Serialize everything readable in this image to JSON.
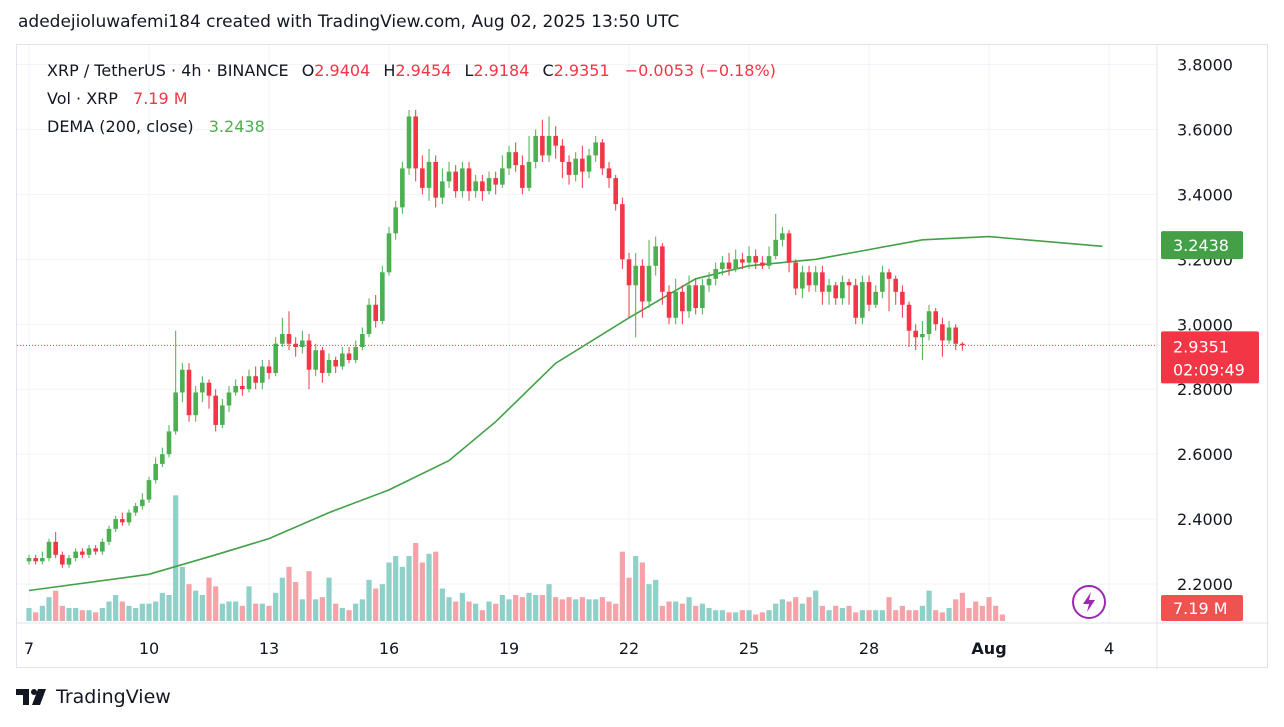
{
  "header": {
    "text": "adedejioluwafemi184 created with TradingView.com, Aug 02, 2025 13:50 UTC"
  },
  "legend": {
    "symbol": "XRP / TetherUS · 4h · BINANCE",
    "open_label": "O",
    "open": "2.9404",
    "high_label": "H",
    "high": "2.9454",
    "low_label": "L",
    "low": "2.9184",
    "close_label": "C",
    "close": "2.9351",
    "change": "−0.0053 (−0.18%)",
    "vol_label": "Vol · XRP",
    "vol_value": "7.19 M",
    "dema_label": "DEMA (200, close)",
    "dema_value": "3.2438"
  },
  "footer": {
    "brand": "TradingView"
  },
  "icons": {
    "logo": "tradingview-logo-icon",
    "bolt": "lightning-bolt-icon"
  },
  "colors": {
    "up": "#26a69a",
    "down": "#ef5350",
    "up_candle": "#4caf50",
    "down_candle": "#f23645",
    "dema": "#43a047",
    "vol_up": "#8fd0c8",
    "vol_down": "#f4a3a9"
  },
  "chart_data": {
    "type": "candlestick",
    "ylim": [
      2.08,
      3.86
    ],
    "y_ticks": [
      "3.8000",
      "3.6000",
      "3.4000",
      "3.2000",
      "3.0000",
      "2.8000",
      "2.6000",
      "2.4000",
      "2.2000"
    ],
    "y_tick_values": [
      3.8,
      3.6,
      3.4,
      3.2,
      3.0,
      2.8,
      2.6,
      2.4,
      2.2
    ],
    "x_ticks": [
      "7",
      "10",
      "13",
      "16",
      "19",
      "22",
      "25",
      "28",
      "Aug",
      "4"
    ],
    "x_tick_bars": [
      0,
      18,
      36,
      54,
      72,
      90,
      108,
      126,
      144,
      162
    ],
    "last_price": 2.9351,
    "last_price_label": "2.9351",
    "countdown": "02:09:49",
    "dema_badge": "3.2438",
    "vol_badge": "7.19 M",
    "series_dema": [
      [
        0,
        2.18
      ],
      [
        18,
        2.23
      ],
      [
        28,
        2.29
      ],
      [
        36,
        2.34
      ],
      [
        45,
        2.42
      ],
      [
        54,
        2.49
      ],
      [
        63,
        2.58
      ],
      [
        70,
        2.7
      ],
      [
        79,
        2.88
      ],
      [
        90,
        3.02
      ],
      [
        100,
        3.14
      ],
      [
        108,
        3.18
      ],
      [
        118,
        3.2
      ],
      [
        126,
        3.23
      ],
      [
        134,
        3.26
      ],
      [
        144,
        3.27
      ],
      [
        161,
        3.24
      ]
    ],
    "candles": [
      [
        2.27,
        2.28,
        2.29,
        2.26
      ],
      [
        2.28,
        2.27,
        2.29,
        2.26
      ],
      [
        2.27,
        2.28,
        2.3,
        2.26
      ],
      [
        2.28,
        2.33,
        2.34,
        2.27
      ],
      [
        2.33,
        2.29,
        2.36,
        2.28
      ],
      [
        2.29,
        2.26,
        2.3,
        2.25
      ],
      [
        2.26,
        2.28,
        2.29,
        2.25
      ],
      [
        2.28,
        2.3,
        2.31,
        2.27
      ],
      [
        2.3,
        2.29,
        2.31,
        2.28
      ],
      [
        2.29,
        2.31,
        2.32,
        2.28
      ],
      [
        2.31,
        2.3,
        2.32,
        2.29
      ],
      [
        2.3,
        2.33,
        2.34,
        2.29
      ],
      [
        2.33,
        2.37,
        2.38,
        2.32
      ],
      [
        2.37,
        2.4,
        2.41,
        2.36
      ],
      [
        2.4,
        2.39,
        2.42,
        2.38
      ],
      [
        2.39,
        2.42,
        2.43,
        2.38
      ],
      [
        2.42,
        2.44,
        2.45,
        2.41
      ],
      [
        2.44,
        2.46,
        2.48,
        2.43
      ],
      [
        2.46,
        2.52,
        2.53,
        2.45
      ],
      [
        2.52,
        2.57,
        2.59,
        2.51
      ],
      [
        2.57,
        2.6,
        2.62,
        2.56
      ],
      [
        2.6,
        2.67,
        2.69,
        2.59
      ],
      [
        2.67,
        2.79,
        2.98,
        2.66
      ],
      [
        2.79,
        2.86,
        2.88,
        2.76
      ],
      [
        2.86,
        2.72,
        2.88,
        2.7
      ],
      [
        2.72,
        2.79,
        2.81,
        2.7
      ],
      [
        2.79,
        2.82,
        2.84,
        2.76
      ],
      [
        2.82,
        2.78,
        2.83,
        2.74
      ],
      [
        2.78,
        2.69,
        2.8,
        2.67
      ],
      [
        2.69,
        2.75,
        2.77,
        2.68
      ],
      [
        2.75,
        2.79,
        2.81,
        2.73
      ],
      [
        2.79,
        2.81,
        2.83,
        2.78
      ],
      [
        2.81,
        2.8,
        2.84,
        2.78
      ],
      [
        2.8,
        2.84,
        2.86,
        2.79
      ],
      [
        2.84,
        2.82,
        2.87,
        2.8
      ],
      [
        2.82,
        2.87,
        2.89,
        2.8
      ],
      [
        2.87,
        2.85,
        2.89,
        2.83
      ],
      [
        2.85,
        2.94,
        2.96,
        2.84
      ],
      [
        2.94,
        2.97,
        3.02,
        2.93
      ],
      [
        2.97,
        2.94,
        3.04,
        2.92
      ],
      [
        2.94,
        2.93,
        2.96,
        2.9
      ],
      [
        2.93,
        2.95,
        2.98,
        2.91
      ],
      [
        2.95,
        2.86,
        2.97,
        2.8
      ],
      [
        2.86,
        2.92,
        2.94,
        2.84
      ],
      [
        2.92,
        2.85,
        2.93,
        2.82
      ],
      [
        2.85,
        2.89,
        2.91,
        2.84
      ],
      [
        2.89,
        2.87,
        2.9,
        2.85
      ],
      [
        2.87,
        2.91,
        2.93,
        2.86
      ],
      [
        2.91,
        2.89,
        2.93,
        2.88
      ],
      [
        2.89,
        2.93,
        2.95,
        2.88
      ],
      [
        2.93,
        2.97,
        2.99,
        2.92
      ],
      [
        2.97,
        3.06,
        3.08,
        2.96
      ],
      [
        3.06,
        3.01,
        3.09,
        2.99
      ],
      [
        3.01,
        3.16,
        3.18,
        3.0
      ],
      [
        3.16,
        3.28,
        3.3,
        3.15
      ],
      [
        3.28,
        3.36,
        3.38,
        3.26
      ],
      [
        3.36,
        3.48,
        3.5,
        3.34
      ],
      [
        3.48,
        3.64,
        3.66,
        3.46
      ],
      [
        3.64,
        3.48,
        3.66,
        3.44
      ],
      [
        3.48,
        3.42,
        3.52,
        3.4
      ],
      [
        3.42,
        3.5,
        3.54,
        3.38
      ],
      [
        3.5,
        3.39,
        3.52,
        3.36
      ],
      [
        3.39,
        3.44,
        3.48,
        3.37
      ],
      [
        3.44,
        3.47,
        3.5,
        3.42
      ],
      [
        3.47,
        3.41,
        3.49,
        3.39
      ],
      [
        3.41,
        3.48,
        3.5,
        3.39
      ],
      [
        3.48,
        3.41,
        3.5,
        3.38
      ],
      [
        3.41,
        3.44,
        3.46,
        3.39
      ],
      [
        3.44,
        3.41,
        3.46,
        3.38
      ],
      [
        3.41,
        3.45,
        3.47,
        3.4
      ],
      [
        3.45,
        3.43,
        3.47,
        3.4
      ],
      [
        3.43,
        3.48,
        3.52,
        3.42
      ],
      [
        3.48,
        3.53,
        3.55,
        3.46
      ],
      [
        3.53,
        3.49,
        3.56,
        3.47
      ],
      [
        3.49,
        3.42,
        3.52,
        3.4
      ],
      [
        3.42,
        3.5,
        3.58,
        3.41
      ],
      [
        3.5,
        3.58,
        3.6,
        3.48
      ],
      [
        3.58,
        3.52,
        3.63,
        3.5
      ],
      [
        3.52,
        3.58,
        3.64,
        3.5
      ],
      [
        3.58,
        3.55,
        3.61,
        3.51
      ],
      [
        3.55,
        3.5,
        3.57,
        3.45
      ],
      [
        3.5,
        3.46,
        3.52,
        3.43
      ],
      [
        3.46,
        3.51,
        3.53,
        3.44
      ],
      [
        3.51,
        3.47,
        3.55,
        3.42
      ],
      [
        3.47,
        3.52,
        3.54,
        3.45
      ],
      [
        3.52,
        3.56,
        3.58,
        3.5
      ],
      [
        3.56,
        3.48,
        3.57,
        3.46
      ],
      [
        3.48,
        3.45,
        3.5,
        3.42
      ],
      [
        3.45,
        3.37,
        3.46,
        3.35
      ],
      [
        3.37,
        3.2,
        3.39,
        3.17
      ],
      [
        3.2,
        3.12,
        3.22,
        3.02
      ],
      [
        3.12,
        3.18,
        3.22,
        2.96
      ],
      [
        3.18,
        3.07,
        3.2,
        3.02
      ],
      [
        3.07,
        3.18,
        3.26,
        3.05
      ],
      [
        3.18,
        3.24,
        3.27,
        3.15
      ],
      [
        3.24,
        3.1,
        3.25,
        3.06
      ],
      [
        3.1,
        3.02,
        3.12,
        3.0
      ],
      [
        3.02,
        3.1,
        3.14,
        3.0
      ],
      [
        3.1,
        3.04,
        3.12,
        3.0
      ],
      [
        3.04,
        3.12,
        3.15,
        3.02
      ],
      [
        3.12,
        3.05,
        3.14,
        3.03
      ],
      [
        3.05,
        3.12,
        3.14,
        3.03
      ],
      [
        3.12,
        3.14,
        3.16,
        3.1
      ],
      [
        3.14,
        3.17,
        3.19,
        3.12
      ],
      [
        3.17,
        3.19,
        3.21,
        3.15
      ],
      [
        3.19,
        3.17,
        3.22,
        3.15
      ],
      [
        3.17,
        3.2,
        3.23,
        3.16
      ],
      [
        3.2,
        3.19,
        3.22,
        3.17
      ],
      [
        3.19,
        3.21,
        3.24,
        3.17
      ],
      [
        3.21,
        3.19,
        3.23,
        3.17
      ],
      [
        3.19,
        3.18,
        3.21,
        3.17
      ],
      [
        3.18,
        3.21,
        3.24,
        3.17
      ],
      [
        3.21,
        3.26,
        3.34,
        3.2
      ],
      [
        3.26,
        3.28,
        3.3,
        3.24
      ],
      [
        3.28,
        3.19,
        3.29,
        3.16
      ],
      [
        3.19,
        3.11,
        3.2,
        3.09
      ],
      [
        3.11,
        3.16,
        3.18,
        3.08
      ],
      [
        3.16,
        3.12,
        3.18,
        3.1
      ],
      [
        3.12,
        3.16,
        3.18,
        3.1
      ],
      [
        3.16,
        3.1,
        3.18,
        3.06
      ],
      [
        3.1,
        3.12,
        3.14,
        3.06
      ],
      [
        3.12,
        3.08,
        3.13,
        3.06
      ],
      [
        3.08,
        3.13,
        3.15,
        3.06
      ],
      [
        3.13,
        3.12,
        3.14,
        3.06
      ],
      [
        3.12,
        3.02,
        3.14,
        3.0
      ],
      [
        3.02,
        3.13,
        3.15,
        3.0
      ],
      [
        3.13,
        3.06,
        3.15,
        3.04
      ],
      [
        3.06,
        3.1,
        3.12,
        3.05
      ],
      [
        3.1,
        3.16,
        3.18,
        3.08
      ],
      [
        3.16,
        3.14,
        3.17,
        3.04
      ],
      [
        3.14,
        3.1,
        3.15,
        3.06
      ],
      [
        3.1,
        3.06,
        3.12,
        3.02
      ],
      [
        3.06,
        2.98,
        3.07,
        2.93
      ],
      [
        2.98,
        2.96,
        3.0,
        2.92
      ],
      [
        2.96,
        2.97,
        3.01,
        2.89
      ],
      [
        2.97,
        3.04,
        3.06,
        2.95
      ],
      [
        3.04,
        3.0,
        3.05,
        2.98
      ],
      [
        3.0,
        2.95,
        3.02,
        2.9
      ],
      [
        2.95,
        2.99,
        3.01,
        2.94
      ],
      [
        2.99,
        2.94,
        3.0,
        2.92
      ],
      [
        2.94,
        2.9351,
        2.9454,
        2.9184
      ]
    ],
    "volume": [
      0.06,
      0.04,
      0.07,
      0.11,
      0.14,
      0.07,
      0.06,
      0.06,
      0.05,
      0.05,
      0.04,
      0.06,
      0.09,
      0.12,
      0.09,
      0.07,
      0.06,
      0.08,
      0.08,
      0.09,
      0.13,
      0.12,
      0.58,
      0.25,
      0.17,
      0.14,
      0.12,
      0.2,
      0.16,
      0.08,
      0.09,
      0.09,
      0.07,
      0.16,
      0.08,
      0.08,
      0.07,
      0.13,
      0.2,
      0.25,
      0.18,
      0.1,
      0.23,
      0.1,
      0.11,
      0.2,
      0.08,
      0.06,
      0.05,
      0.08,
      0.1,
      0.19,
      0.15,
      0.17,
      0.27,
      0.3,
      0.25,
      0.3,
      0.36,
      0.27,
      0.31,
      0.32,
      0.15,
      0.11,
      0.09,
      0.13,
      0.09,
      0.08,
      0.05,
      0.09,
      0.08,
      0.12,
      0.1,
      0.12,
      0.11,
      0.13,
      0.12,
      0.12,
      0.17,
      0.11,
      0.1,
      0.11,
      0.1,
      0.11,
      0.1,
      0.1,
      0.11,
      0.09,
      0.08,
      0.32,
      0.2,
      0.3,
      0.27,
      0.17,
      0.19,
      0.07,
      0.09,
      0.09,
      0.08,
      0.11,
      0.07,
      0.08,
      0.06,
      0.05,
      0.05,
      0.04,
      0.04,
      0.05,
      0.05,
      0.03,
      0.04,
      0.05,
      0.08,
      0.1,
      0.09,
      0.11,
      0.08,
      0.11,
      0.14,
      0.07,
      0.05,
      0.07,
      0.06,
      0.07,
      0.04,
      0.05,
      0.05,
      0.05,
      0.05,
      0.11,
      0.05,
      0.07,
      0.05,
      0.05,
      0.07,
      0.14,
      0.05,
      0.04,
      0.06,
      0.1,
      0.13,
      0.06,
      0.09,
      0.07,
      0.11,
      0.07,
      0.03
    ]
  }
}
